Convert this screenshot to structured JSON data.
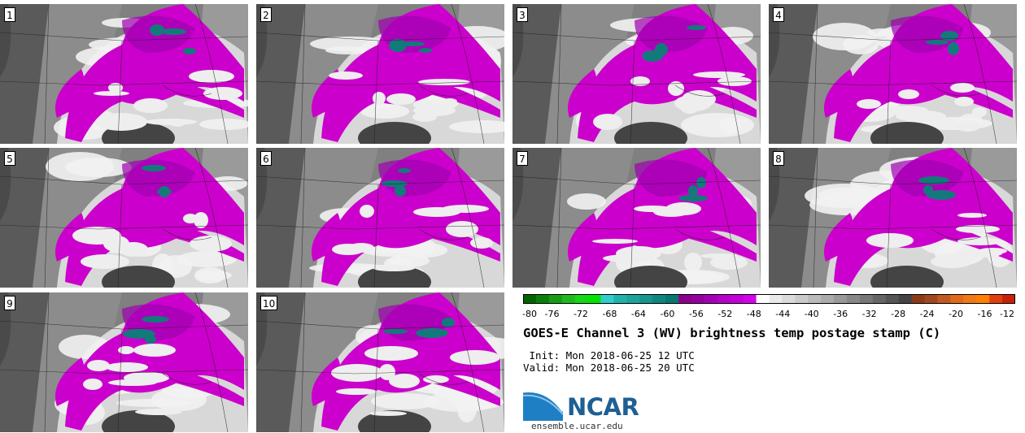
{
  "panels": [
    "1",
    "2",
    "3",
    "4",
    "5",
    "6",
    "7",
    "8",
    "9",
    "10"
  ],
  "colorbar": {
    "ticks": [
      "-80",
      "-76",
      "-72",
      "-68",
      "-64",
      "-60",
      "-56",
      "-52",
      "-48",
      "-44",
      "-40",
      "-36",
      "-32",
      "-28",
      "-24",
      "-20",
      "-16",
      "-12"
    ],
    "colors": [
      "#006400",
      "#0a7f0a",
      "#169c16",
      "#20b820",
      "#17d517",
      "#00e400",
      "#33cccc",
      "#20b2aa",
      "#1ca39b",
      "#15958c",
      "#0f867d",
      "#08786e",
      "#8b008b",
      "#9400a0",
      "#a300b5",
      "#b500c9",
      "#c400d9",
      "#d400ea",
      "#ffffff",
      "#eaeaea",
      "#dadada",
      "#cacaca",
      "#bababa",
      "#aaaaaa",
      "#999999",
      "#888888",
      "#777777",
      "#666666",
      "#555555",
      "#444444",
      "#8b3a1a",
      "#a0471f",
      "#c05a20",
      "#e06a1a",
      "#f07818",
      "#ff7f00",
      "#e04010",
      "#c8200a"
    ]
  },
  "title": "GOES-E Channel 3 (WV) brightness temp postage stamp (C)",
  "init": " Init: Mon 2018-06-25 12 UTC",
  "valid": "Valid: Mon 2018-06-25 20 UTC",
  "logo": {
    "name": "NCAR",
    "url": "ensemble.ucar.edu"
  }
}
